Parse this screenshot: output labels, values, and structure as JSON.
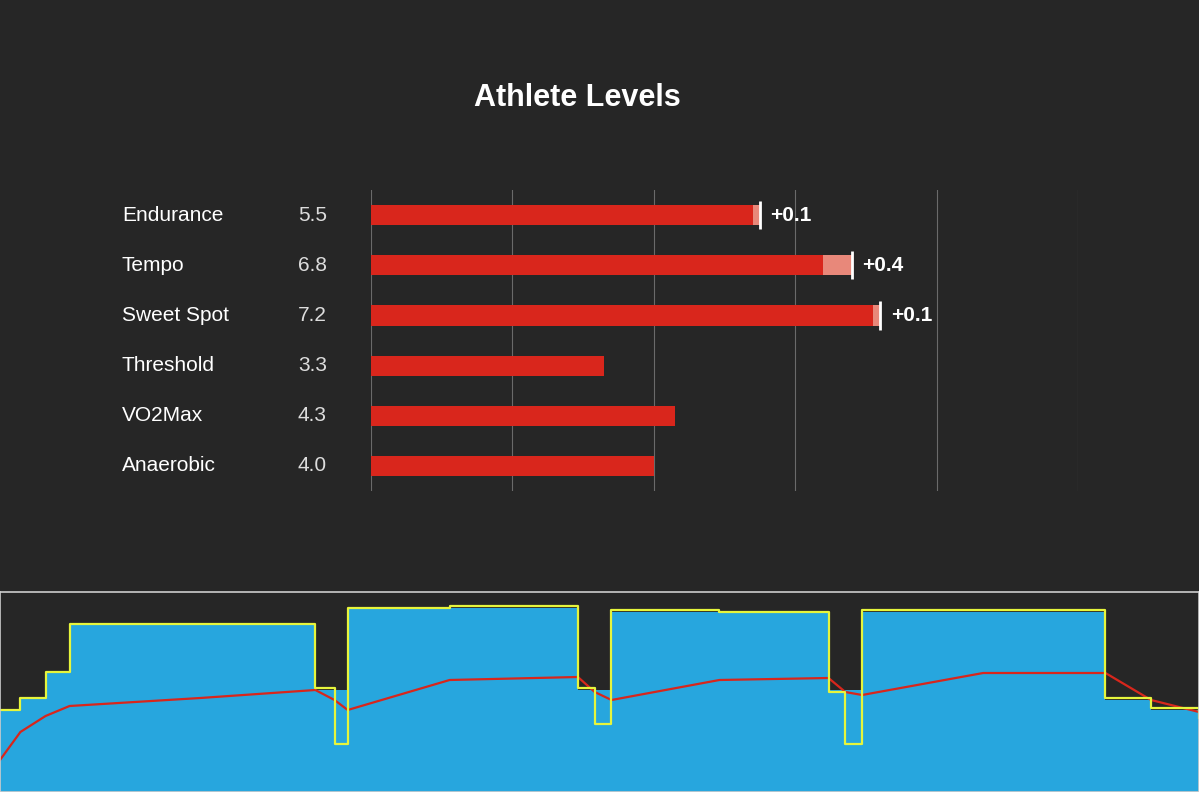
{
  "chart_data": [
    {
      "type": "bar",
      "orientation": "horizontal",
      "title": "Athlete Levels",
      "categories": [
        "Endurance",
        "Tempo",
        "Sweet Spot",
        "Threshold",
        "VO2Max",
        "Anaerobic"
      ],
      "values": [
        5.5,
        6.8,
        7.2,
        3.3,
        4.3,
        4.0
      ],
      "value_labels": [
        "5.5",
        "6.8",
        "7.2",
        "3.3",
        "4.3",
        "4.0"
      ],
      "changes": {
        "color": "#e8887a",
        "values": [
          0.1,
          0.4,
          0.1,
          null,
          null,
          null
        ],
        "value_labels": [
          "+0.1",
          "+0.4",
          "+0.1",
          null,
          null,
          null
        ]
      },
      "color": "#d9261c",
      "xlim": [
        0,
        10
      ],
      "xticks": [
        0,
        2,
        4,
        6,
        8,
        10
      ],
      "grid": true,
      "tick_labels": false,
      "data_labels": true
    },
    {
      "type": "area",
      "x": [
        0,
        1.7,
        3.8,
        5.8,
        16.7,
        26.3,
        27.9,
        29.0,
        37.5,
        48.2,
        49.6,
        51.0,
        60.0,
        69.1,
        70.5,
        71.9,
        82.0,
        92.2,
        96.0,
        100
      ],
      "xlim": [
        0,
        100
      ],
      "ylim": [
        0,
        100
      ],
      "xticks": [],
      "yticks": [],
      "grid": false,
      "tick_labels": false,
      "series": [
        {
          "type": "area",
          "color": "#27a6de",
          "values": [
            41,
            47,
            60,
            84,
            84,
            51,
            51,
            92,
            92,
            51,
            51,
            90,
            90,
            51,
            51,
            90,
            90,
            46,
            41,
            37
          ]
        },
        {
          "type": "line",
          "color": "#d8261c",
          "line_style": "solid",
          "values": [
            16,
            30,
            38,
            43,
            47,
            51,
            46,
            41,
            56,
            57.5,
            50,
            46,
            56,
            57,
            50,
            48.5,
            59.5,
            59.5,
            46,
            40
          ]
        },
        {
          "type": "line",
          "color": "#e6f53c",
          "line_style": "steps",
          "values": [
            41,
            47,
            60,
            84,
            84,
            52,
            24,
            92,
            93,
            52,
            34,
            91,
            90,
            50,
            24,
            91,
            91,
            47,
            42,
            37
          ]
        }
      ]
    }
  ]
}
